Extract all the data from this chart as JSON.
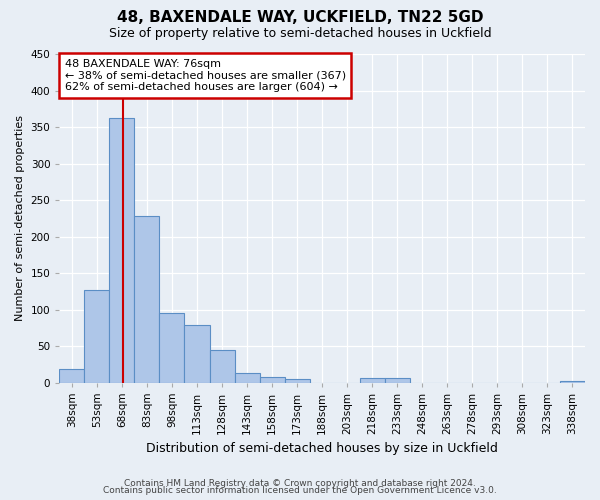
{
  "title": "48, BAXENDALE WAY, UCKFIELD, TN22 5GD",
  "subtitle": "Size of property relative to semi-detached houses in Uckfield",
  "xlabel": "Distribution of semi-detached houses by size in Uckfield",
  "ylabel": "Number of semi-detached properties",
  "bin_labels": [
    "38sqm",
    "53sqm",
    "68sqm",
    "83sqm",
    "98sqm",
    "113sqm",
    "128sqm",
    "143sqm",
    "158sqm",
    "173sqm",
    "188sqm",
    "203sqm",
    "218sqm",
    "233sqm",
    "248sqm",
    "263sqm",
    "278sqm",
    "293sqm",
    "308sqm",
    "323sqm",
    "338sqm"
  ],
  "bar_values": [
    19,
    127,
    363,
    228,
    95,
    79,
    45,
    13,
    8,
    5,
    0,
    0,
    6,
    6,
    0,
    0,
    0,
    0,
    0,
    0,
    2
  ],
  "bar_color": "#aec6e8",
  "bar_edge_color": "#5b8ec5",
  "property_sqm": 76,
  "property_bin_idx": 2,
  "annotation_title": "48 BAXENDALE WAY: 76sqm",
  "annotation_line1": "← 38% of semi-detached houses are smaller (367)",
  "annotation_line2": "62% of semi-detached houses are larger (604) →",
  "annotation_box_color": "#ffffff",
  "annotation_box_edge": "#cc0000",
  "vline_color": "#cc0000",
  "ylim": [
    0,
    450
  ],
  "yticks": [
    0,
    50,
    100,
    150,
    200,
    250,
    300,
    350,
    400,
    450
  ],
  "footer1": "Contains HM Land Registry data © Crown copyright and database right 2024.",
  "footer2": "Contains public sector information licensed under the Open Government Licence v3.0.",
  "bg_color": "#e8eef5",
  "plot_bg_color": "#e8eef5",
  "grid_color": "#ffffff",
  "title_fontsize": 11,
  "subtitle_fontsize": 9,
  "ylabel_fontsize": 8,
  "xlabel_fontsize": 9,
  "tick_fontsize": 7.5,
  "annotation_fontsize": 8,
  "footer_fontsize": 6.5
}
